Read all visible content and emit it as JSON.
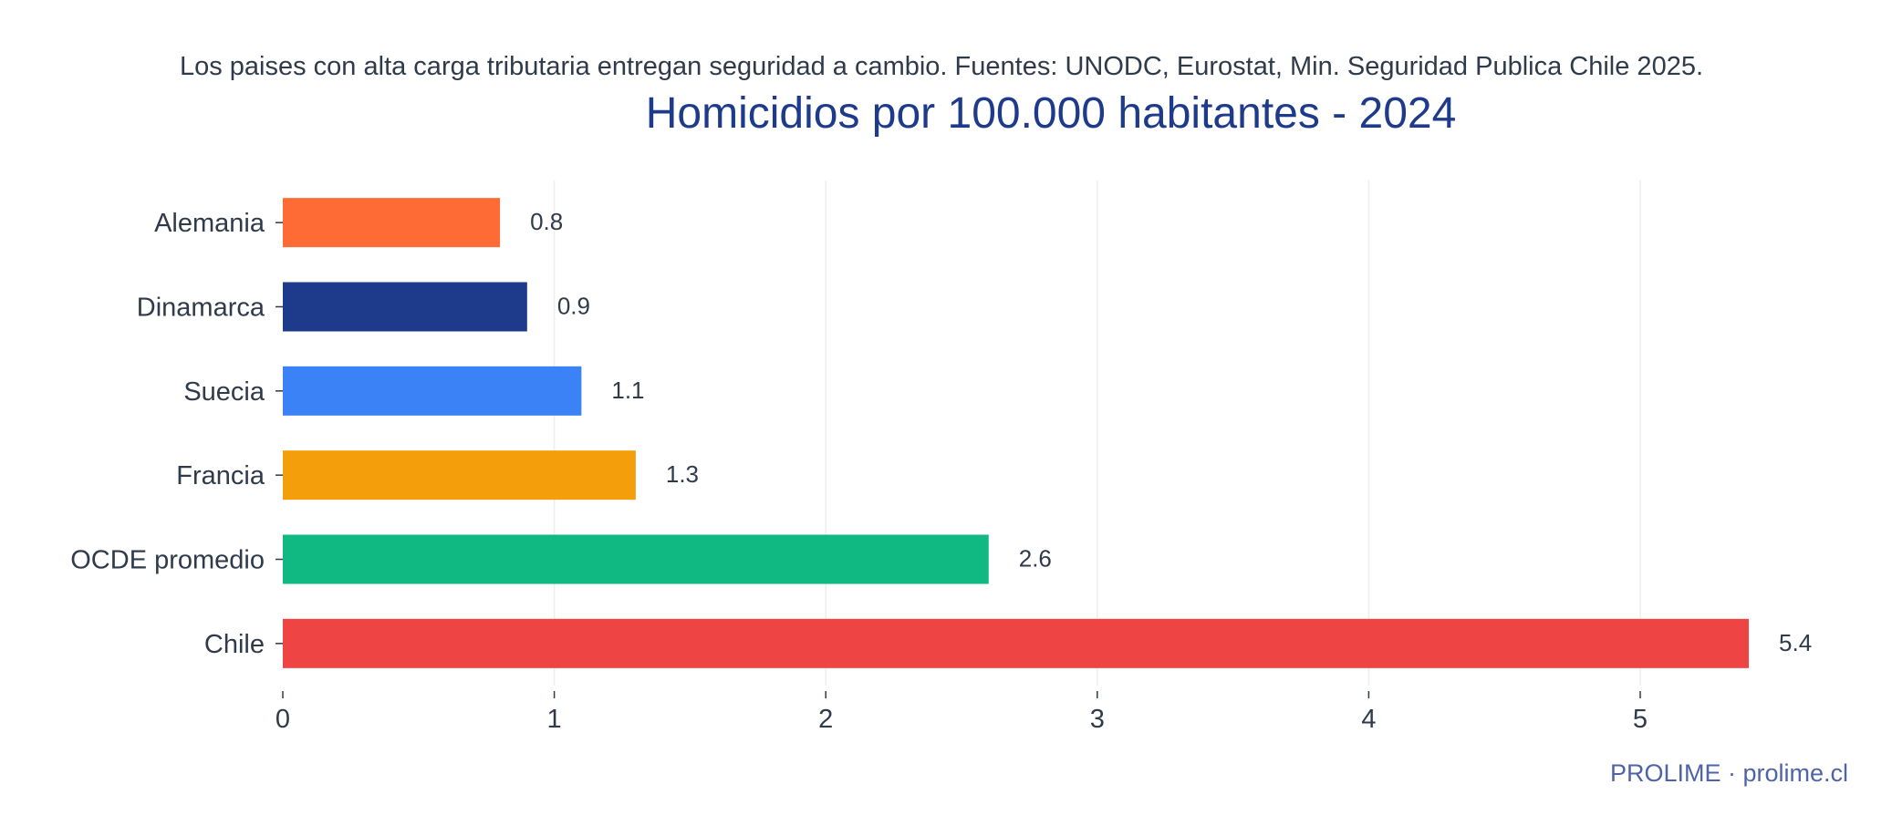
{
  "header": {
    "subtitle": "Los paises con alta carga tributaria entregan seguridad a cambio. Fuentes: UNODC, Eurostat, Min. Seguridad Publica Chile 2025.",
    "title": "Homicidios por 100.000 habitantes - 2024"
  },
  "footer": {
    "credit": "PROLIME · prolime.cl"
  },
  "chart_data": {
    "type": "bar",
    "orientation": "horizontal",
    "title": "Homicidios por 100.000 habitantes - 2024",
    "subtitle": "Los paises con alta carga tributaria entregan seguridad a cambio. Fuentes: UNODC, Eurostat, Min. Seguridad Publica Chile 2025.",
    "categories": [
      "Alemania",
      "Dinamarca",
      "Suecia",
      "Francia",
      "OCDE promedio",
      "Chile"
    ],
    "values": [
      0.8,
      0.9,
      1.1,
      1.3,
      2.6,
      5.4
    ],
    "value_labels": [
      "0.8",
      "0.9",
      "1.1",
      "1.3",
      "2.6",
      "5.4"
    ],
    "colors": [
      "#ff6b35",
      "#1e3a8a",
      "#3b82f6",
      "#f59e0b",
      "#10b981",
      "#ef4444"
    ],
    "xlim": [
      0,
      5.6
    ],
    "xticks": [
      0,
      1,
      2,
      3,
      4,
      5
    ],
    "xlabel": "",
    "ylabel": "",
    "grid": "vertical",
    "legend": "none"
  }
}
